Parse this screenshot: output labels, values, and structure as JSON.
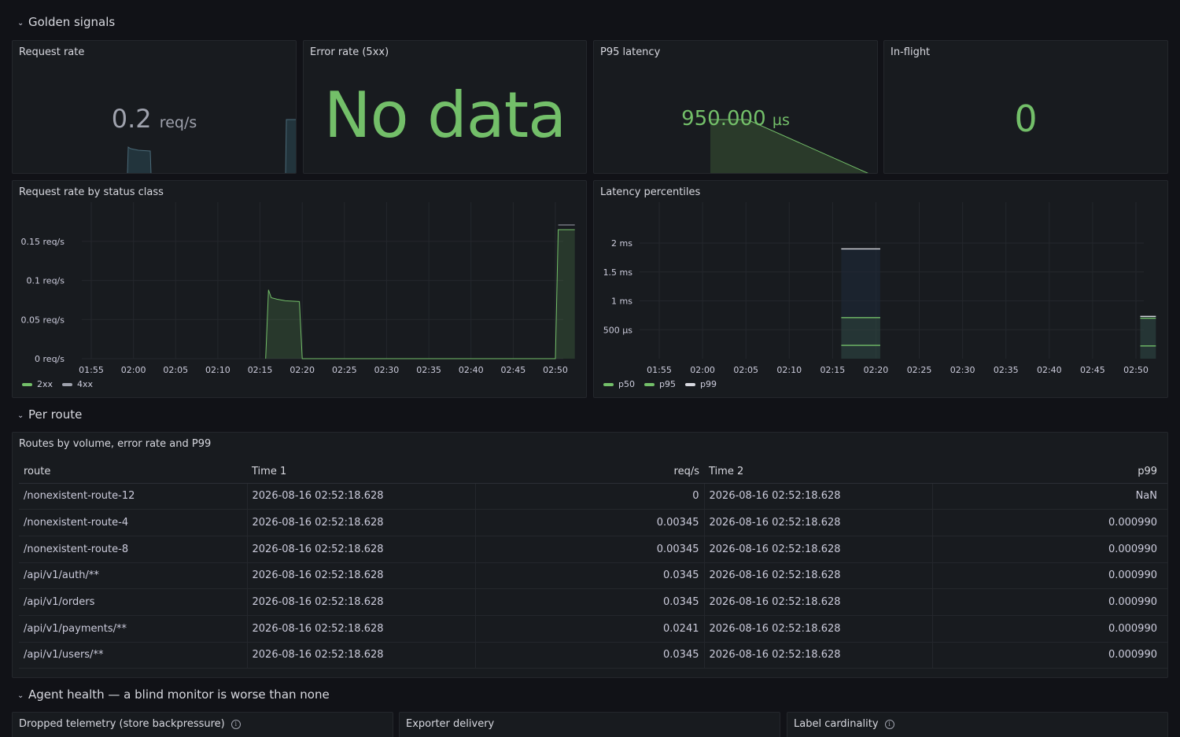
{
  "rows": {
    "golden": "Golden signals",
    "per_route": "Per route",
    "agent_health": "Agent health — a blind monitor is worse than none"
  },
  "stats": {
    "request_rate": {
      "title": "Request rate",
      "value": "0.2",
      "unit": "req/s"
    },
    "error_rate": {
      "title": "Error rate (5xx)",
      "value": "No data"
    },
    "p95_latency": {
      "title": "P95 latency",
      "value": "950.000",
      "unit": "µs"
    },
    "in_flight": {
      "title": "In-flight",
      "value": "0"
    }
  },
  "colors": {
    "green": "#73bf69",
    "gray": "#9fa2ad",
    "white": "#d8d9e0",
    "blue_fill": "#1f2a3a"
  },
  "chart_data": [
    {
      "type": "area",
      "title": "Request rate by status class",
      "x": [
        "01:55",
        "02:00",
        "02:05",
        "02:10",
        "02:15",
        "02:20",
        "02:25",
        "02:30",
        "02:35",
        "02:40",
        "02:45",
        "02:50"
      ],
      "y_ticks": [
        "0 req/s",
        "0.05 req/s",
        "0.1 req/s",
        "0.15 req/s"
      ],
      "ylim": [
        0,
        0.17
      ],
      "series": [
        {
          "name": "2xx",
          "color": "#73bf69",
          "points": [
            [
              "02:15:40",
              0
            ],
            [
              "02:16:00",
              0.088
            ],
            [
              "02:16:20",
              0.078
            ],
            [
              "02:17:00",
              0.076
            ],
            [
              "02:18:00",
              0.074
            ],
            [
              "02:19:40",
              0.073
            ],
            [
              "02:20:00",
              0
            ],
            [
              "02:50:00",
              0
            ],
            [
              "02:50:20",
              0.165
            ],
            [
              "02:52:18",
              0.165
            ]
          ]
        },
        {
          "name": "4xx",
          "color": "#9fa2ad",
          "points": [
            [
              "02:50:20",
              0.171
            ],
            [
              "02:52:18",
              0.171
            ]
          ]
        }
      ],
      "legend": "bottom-left"
    },
    {
      "type": "bar",
      "title": "Latency percentiles",
      "x": [
        "01:55",
        "02:00",
        "02:05",
        "02:10",
        "02:15",
        "02:20",
        "02:25",
        "02:30",
        "02:35",
        "02:40",
        "02:45",
        "02:50"
      ],
      "y_ticks": [
        "500 µs",
        "1 ms",
        "1.5 ms",
        "2 ms"
      ],
      "ylim": [
        0,
        2.3
      ],
      "series": [
        {
          "name": "p50",
          "color": "#73bf69",
          "points": [
            [
              "02:16:00",
              0.23
            ],
            [
              "02:20:30",
              0.23
            ],
            [
              "02:50:30",
              0.22
            ],
            [
              "02:52:18",
              0.22
            ]
          ]
        },
        {
          "name": "p95",
          "color": "#73bf69",
          "points": [
            [
              "02:16:00",
              0.71
            ],
            [
              "02:20:30",
              0.71
            ],
            [
              "02:50:30",
              0.7
            ],
            [
              "02:52:18",
              0.7
            ]
          ]
        },
        {
          "name": "p99",
          "color": "#d8d9e0",
          "points": [
            [
              "02:16:00",
              1.9
            ],
            [
              "02:20:30",
              1.9
            ],
            [
              "02:50:30",
              0.73
            ],
            [
              "02:52:18",
              0.73
            ]
          ]
        }
      ],
      "legend": "bottom-left"
    }
  ],
  "routes_table": {
    "title": "Routes by volume, error rate and P99",
    "columns": [
      "route",
      "Time 1",
      "req/s",
      "Time 2",
      "p99"
    ],
    "rows": [
      [
        "/nonexistent-route-12",
        "2026-08-16 02:52:18.628",
        "0",
        "2026-08-16 02:52:18.628",
        "NaN"
      ],
      [
        "/nonexistent-route-4",
        "2026-08-16 02:52:18.628",
        "0.00345",
        "2026-08-16 02:52:18.628",
        "0.000990"
      ],
      [
        "/nonexistent-route-8",
        "2026-08-16 02:52:18.628",
        "0.00345",
        "2026-08-16 02:52:18.628",
        "0.000990"
      ],
      [
        "/api/v1/auth/**",
        "2026-08-16 02:52:18.628",
        "0.0345",
        "2026-08-16 02:52:18.628",
        "0.000990"
      ],
      [
        "/api/v1/orders",
        "2026-08-16 02:52:18.628",
        "0.0345",
        "2026-08-16 02:52:18.628",
        "0.000990"
      ],
      [
        "/api/v1/payments/**",
        "2026-08-16 02:52:18.628",
        "0.0241",
        "2026-08-16 02:52:18.628",
        "0.000990"
      ],
      [
        "/api/v1/users/**",
        "2026-08-16 02:52:18.628",
        "0.0345",
        "2026-08-16 02:52:18.628",
        "0.000990"
      ]
    ]
  },
  "agent_panels": {
    "dropped": "Dropped telemetry (store backpressure)",
    "exporter": "Exporter delivery",
    "cardinality": "Label cardinality"
  }
}
